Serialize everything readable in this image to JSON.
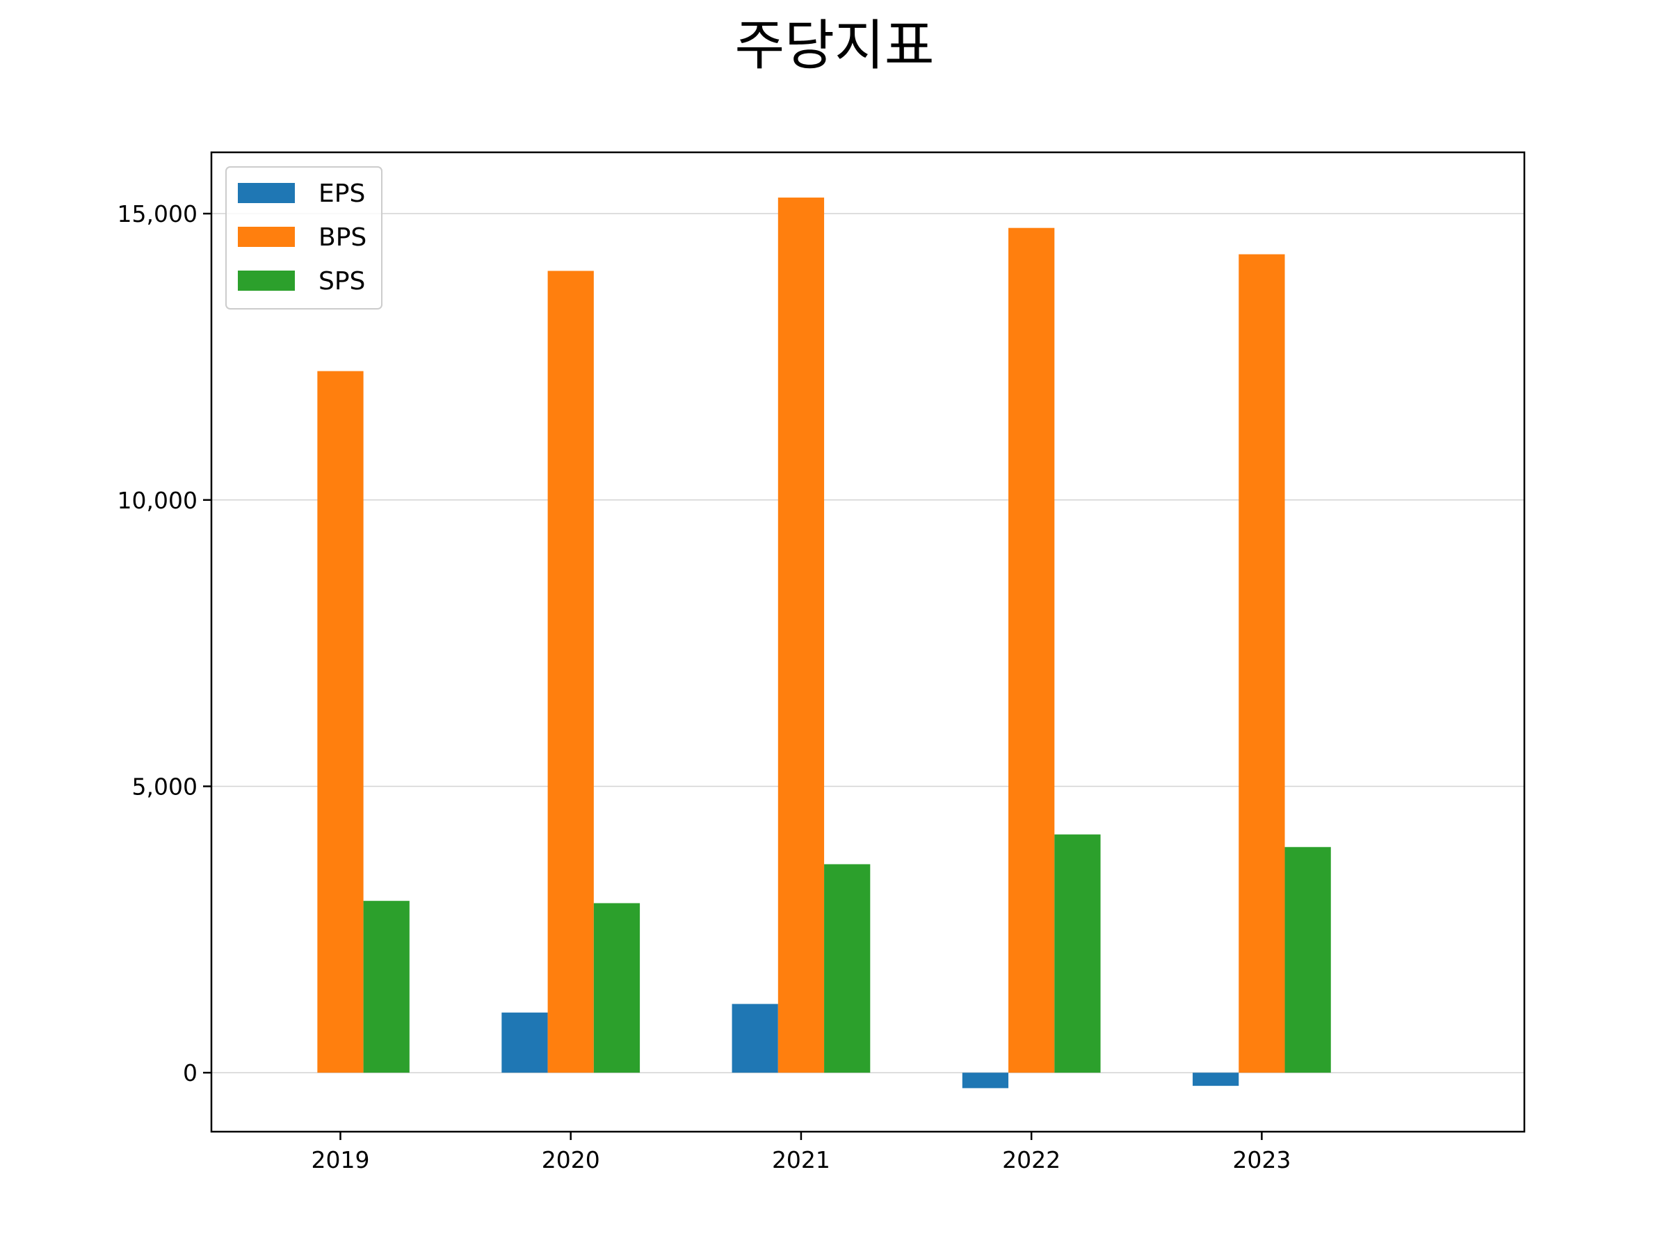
{
  "chart_data": {
    "type": "bar",
    "title": "주당지표",
    "xlabel": "",
    "ylabel": "",
    "categories": [
      "2019",
      "2020",
      "2021",
      "2022",
      "2023"
    ],
    "series": [
      {
        "name": "EPS",
        "color": "#1f77b4",
        "values": [
          0,
          1050,
          1200,
          -270,
          -230
        ]
      },
      {
        "name": "BPS",
        "color": "#ff7f0e",
        "values": [
          12250,
          14000,
          15280,
          14750,
          14290
        ]
      },
      {
        "name": "SPS",
        "color": "#2ca02c",
        "values": [
          3000,
          2960,
          3640,
          4160,
          3940
        ]
      }
    ],
    "ylim": [
      -1030,
      16070
    ],
    "yticks": [
      0,
      5000,
      10000,
      15000
    ],
    "ytick_labels": [
      "0",
      "5,000",
      "10,000",
      "15,000"
    ],
    "grid": "y",
    "legend_position": "top-left"
  }
}
